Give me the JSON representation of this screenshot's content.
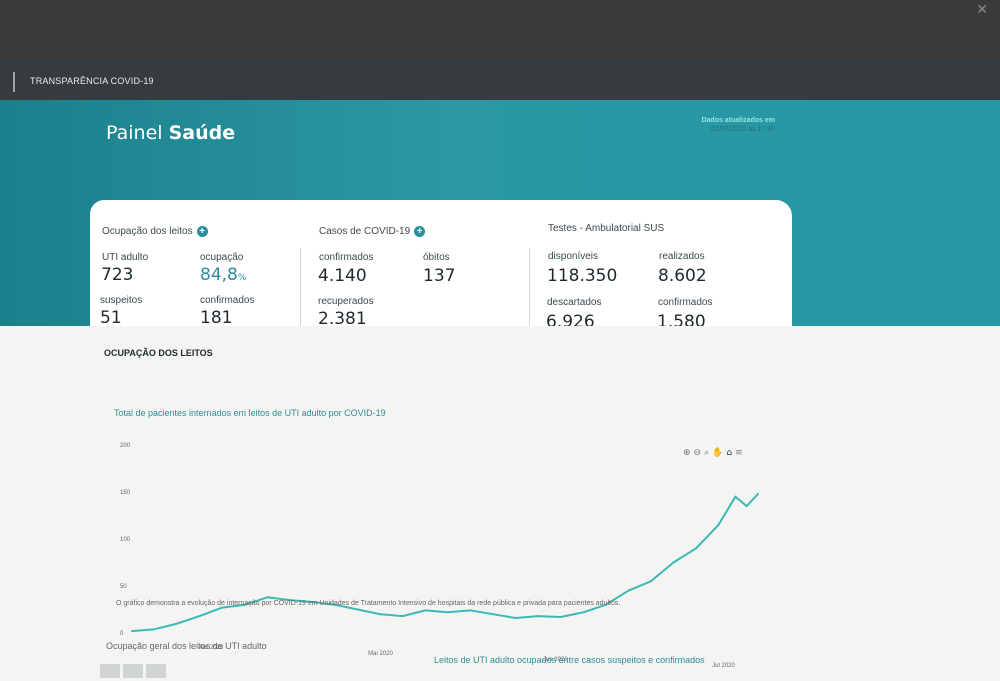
{
  "topbar": {
    "brand": "TRANSPARÊNCIA COVID-19"
  },
  "header": {
    "title_prefix": "Painel",
    "title_bold": "Saúde",
    "updated_label": "Dados atualizados em",
    "updated_value": "07/07/2020 às 17:30"
  },
  "leitos": {
    "title": "Ocupação dos leitos",
    "uti_label": "UTI adulto",
    "uti_value": "723",
    "ocupacao_label": "ocupação",
    "ocupacao_value": "84,8",
    "ocupacao_unit": "%",
    "suspeitos_label": "suspeitos",
    "suspeitos_value": "51",
    "confirmados_label": "confirmados",
    "confirmados_value": "181"
  },
  "casos": {
    "title": "Casos de COVID-19",
    "confirmados_label": "confirmados",
    "confirmados_value": "4.140",
    "obitos_label": "óbitos",
    "obitos_value": "137",
    "recuperados_label": "recuperados",
    "recuperados_value": "2.381"
  },
  "testes": {
    "title": "Testes - Ambulatorial SUS",
    "disponiveis_label": "disponíveis",
    "disponiveis_value": "118.350",
    "realizados_label": "realizados",
    "realizados_value": "8.602",
    "descartados_label": "descartados",
    "descartados_value": "6.926",
    "confirmados_label": "confirmados",
    "confirmados_value": "1.580"
  },
  "section": {
    "title": "OCUPAÇÃO DOS LEITOS",
    "chart_subtitle": "Total de pacientes internados em leitos de UTI adulto por COVID-19",
    "note": "O gráfico demonstra a evolução de internação por COVID-19 em Unidades de Tratamento Intensivo de hospitais da rede pública e privada para pacientes adultos.",
    "bottom_left": "Ocupação geral dos leitos de UTI adulto",
    "bottom_right": "Leitos de UTI adulto ocupados entre casos suspeitos e confirmados"
  },
  "toolbar": {
    "zoom_in_icon": "⊕",
    "zoom_out_icon": "⊖",
    "zoom_icon": "⌕",
    "pan_icon": "✋",
    "home_icon": "⌂",
    "menu_icon": "≡"
  },
  "colors": {
    "accent": "#2a8f9a",
    "hero": "#2697a5",
    "line": "#3bb9b5"
  },
  "chart_data": {
    "type": "line",
    "title": "Total de pacientes internados em leitos de UTI adulto por COVID-19",
    "ylim": [
      0,
      200
    ],
    "yticks": [
      "200",
      "150",
      "100",
      "50",
      "0"
    ],
    "xtick_labels": [
      "Abr 2020",
      "Mai 2020",
      "Jun 2020",
      "Jul 2020"
    ],
    "x": [
      "2020-03-18",
      "2020-03-22",
      "2020-03-26",
      "2020-03-30",
      "2020-04-03",
      "2020-04-07",
      "2020-04-11",
      "2020-04-15",
      "2020-04-19",
      "2020-04-23",
      "2020-04-27",
      "2020-05-01",
      "2020-05-05",
      "2020-05-09",
      "2020-05-13",
      "2020-05-17",
      "2020-05-21",
      "2020-05-25",
      "2020-05-29",
      "2020-06-02",
      "2020-06-06",
      "2020-06-10",
      "2020-06-14",
      "2020-06-18",
      "2020-06-22",
      "2020-06-26",
      "2020-06-30",
      "2020-07-03",
      "2020-07-05",
      "2020-07-07"
    ],
    "series": [
      {
        "values": [
          2,
          4,
          10,
          18,
          27,
          30,
          38,
          35,
          33,
          30,
          25,
          20,
          18,
          24,
          22,
          24,
          20,
          16,
          18,
          17,
          22,
          30,
          45,
          55,
          75,
          90,
          115,
          145,
          135,
          148
        ]
      }
    ]
  }
}
